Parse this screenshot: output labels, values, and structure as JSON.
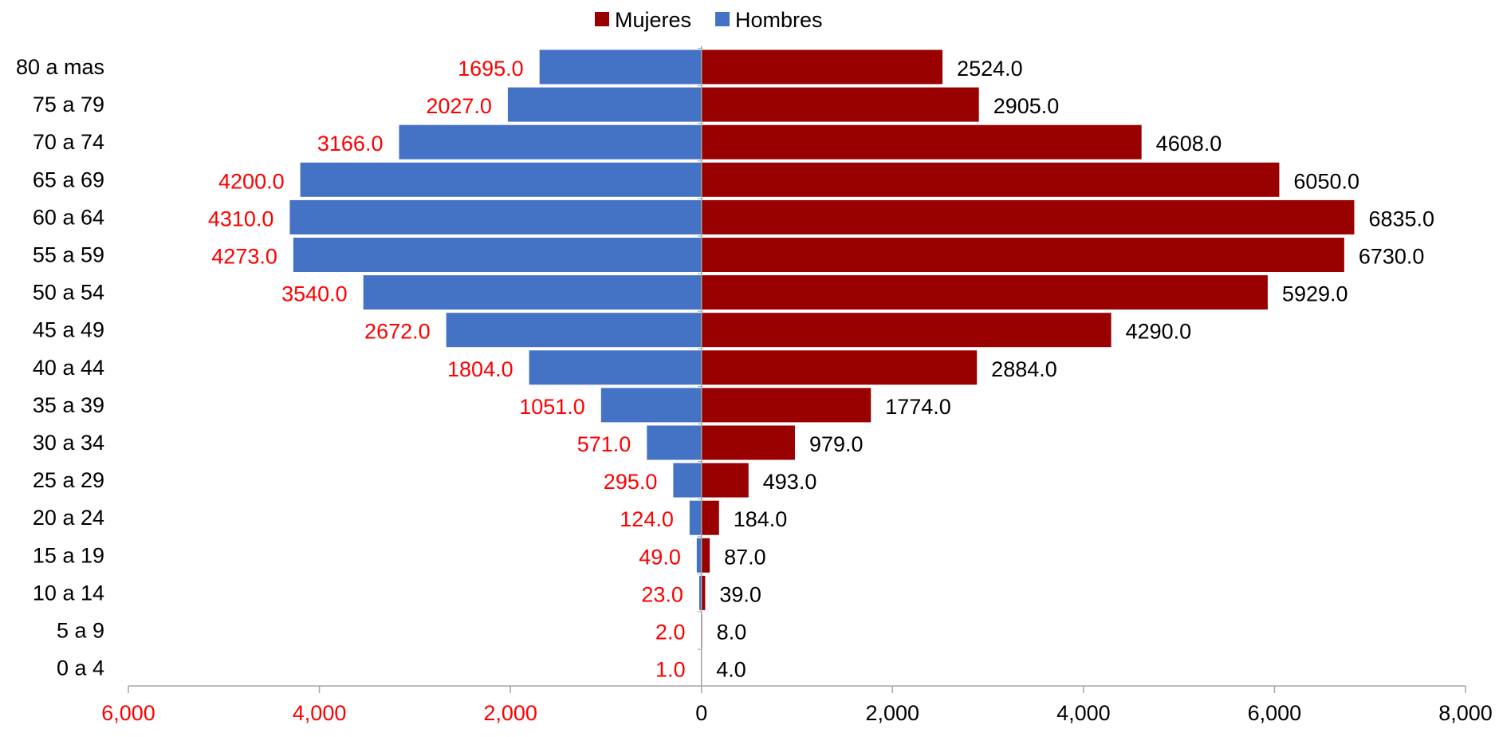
{
  "chart_data": {
    "type": "bar",
    "orientation": "horizontal",
    "variant": "population-pyramid",
    "categories": [
      "80 a mas",
      "75 a 79",
      "70 a 74",
      "65 a 69",
      "60 a 64",
      "55 a 59",
      "50 a 54",
      "45 a 49",
      "40 a 44",
      "35 a 39",
      "30 a 34",
      "25 a 29",
      "20 a 24",
      "15 a 19",
      "10 a 14",
      "5 a 9",
      "0 a 4"
    ],
    "series": [
      {
        "name": "Mujeres",
        "color": "#990000",
        "side": "right",
        "label_color": "#000000",
        "values": [
          2524,
          2905,
          4608,
          6050,
          6835,
          6730,
          5929,
          4290,
          2884,
          1774,
          979,
          493,
          184,
          87,
          39,
          8,
          4
        ],
        "labels": [
          "2524.0",
          "2905.0",
          "4608.0",
          "6050.0",
          "6835.0",
          "6730.0",
          "5929.0",
          "4290.0",
          "2884.0",
          "1774.0",
          "979.0",
          "493.0",
          "184.0",
          "87.0",
          "39.0",
          "8.0",
          "4.0"
        ]
      },
      {
        "name": "Hombres",
        "color": "#4472C4",
        "side": "left",
        "label_color": "#FF0000",
        "values": [
          1695,
          2027,
          3166,
          4200,
          4310,
          4273,
          3540,
          2672,
          1804,
          1051,
          571,
          295,
          124,
          49,
          23,
          2,
          1
        ],
        "labels": [
          "1695.0",
          "2027.0",
          "3166.0",
          "4200.0",
          "4310.0",
          "4273.0",
          "3540.0",
          "2672.0",
          "1804.0",
          "1051.0",
          "571.0",
          "295.0",
          "124.0",
          "49.0",
          "23.0",
          "2.0",
          "1.0"
        ]
      }
    ],
    "xlim": [
      -6000,
      8000
    ],
    "x_ticks": [
      {
        "value": -6000,
        "label": "6,000",
        "color": "#FF0000"
      },
      {
        "value": -4000,
        "label": "4,000",
        "color": "#FF0000"
      },
      {
        "value": -2000,
        "label": "2,000",
        "color": "#FF0000"
      },
      {
        "value": 0,
        "label": "0",
        "color": "#000000"
      },
      {
        "value": 2000,
        "label": "2,000",
        "color": "#000000"
      },
      {
        "value": 4000,
        "label": "4,000",
        "color": "#000000"
      },
      {
        "value": 6000,
        "label": "6,000",
        "color": "#000000"
      },
      {
        "value": 8000,
        "label": "8,000",
        "color": "#000000"
      }
    ],
    "legend": {
      "placement": "top-center",
      "order": [
        "Mujeres",
        "Hombres"
      ]
    },
    "grid": false,
    "title": "",
    "xlabel": "",
    "ylabel": ""
  }
}
